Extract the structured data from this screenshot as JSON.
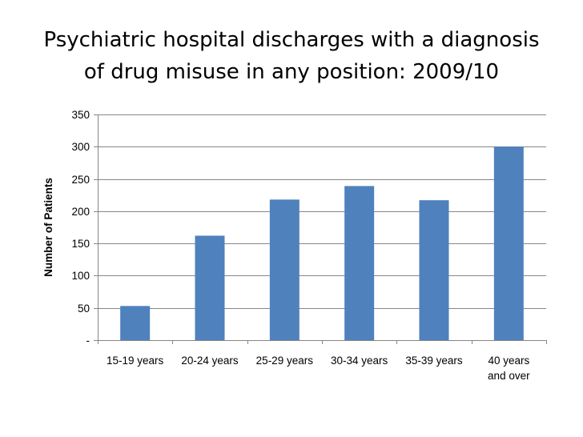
{
  "slide": {
    "title_lines": [
      "Psychiatric hospital discharges with a diagnosis",
      "of drug misuse in any position: 2009/10"
    ]
  },
  "chart_data": {
    "type": "bar",
    "title": "Psychiatric hospital discharges with a diagnosis of drug misuse in any position: 2009/10",
    "xlabel": "",
    "ylabel": "Number of Patients",
    "categories": [
      [
        "15-19 years"
      ],
      [
        "20-24 years"
      ],
      [
        "25-29 years"
      ],
      [
        "30-34 years"
      ],
      [
        "35-39 years"
      ],
      [
        "40 years",
        "and over"
      ]
    ],
    "values": [
      53,
      162,
      218,
      239,
      217,
      300
    ],
    "ylim": [
      0,
      350
    ],
    "yticks": [
      0,
      50,
      100,
      150,
      200,
      250,
      300,
      350
    ],
    "ytick_labels": [
      "-",
      "50",
      "100",
      "150",
      "200",
      "250",
      "300",
      "350"
    ],
    "grid": true,
    "legend": "none",
    "colors": {
      "bar": "#4f81bd",
      "grid": "#868686",
      "axis": "#868686"
    }
  }
}
